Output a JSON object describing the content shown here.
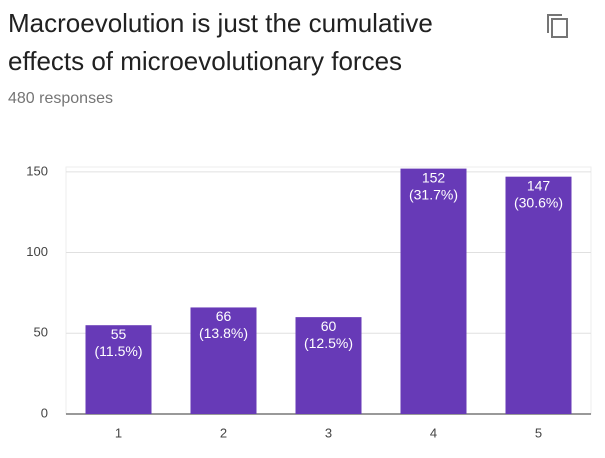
{
  "chart_data": {
    "type": "bar",
    "title": "Macroevolution is just the cumulative effects of microevolutionary forces",
    "subtitle": "480 responses",
    "categories": [
      "1",
      "2",
      "3",
      "4",
      "5"
    ],
    "values": [
      55,
      66,
      60,
      152,
      147
    ],
    "percent_labels": [
      "(11.5%)",
      "(13.8%)",
      "(12.5%)",
      "(31.7%)",
      "(30.6%)"
    ],
    "color": "#673ab7",
    "ylim": [
      0,
      153
    ],
    "yticks": [
      0,
      50,
      100,
      150
    ],
    "grid": true
  }
}
